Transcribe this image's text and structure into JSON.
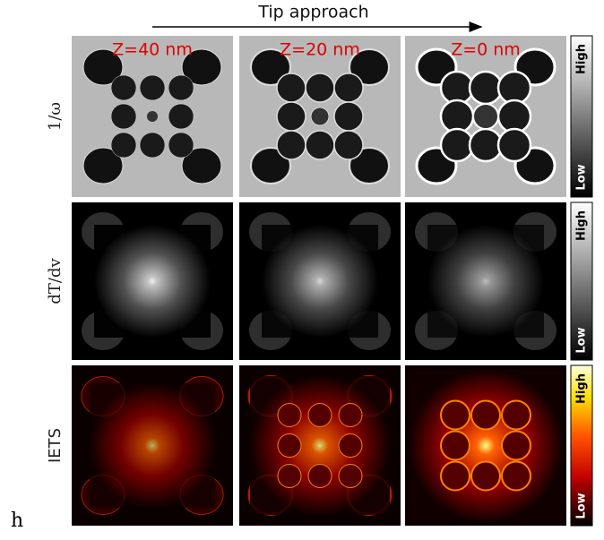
{
  "header": {
    "title": "Tip approach"
  },
  "columns": [
    "Z=40 nm",
    "Z=20 nm",
    "Z=0 nm"
  ],
  "rows": [
    {
      "label": "1/ω",
      "high": "High",
      "low": "Low"
    },
    {
      "label": "dT/dv",
      "high": "High",
      "low": "Low"
    },
    {
      "label": "IETS",
      "high": "High",
      "low": "Low"
    }
  ],
  "panel_label": "h"
}
